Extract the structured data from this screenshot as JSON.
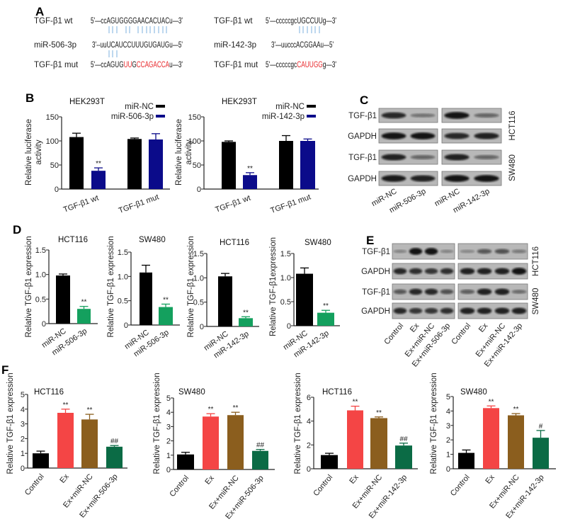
{
  "panels": {
    "A": "A",
    "B": "B",
    "C": "C",
    "D": "D",
    "E": "E",
    "F": "F"
  },
  "panel_a": {
    "left": {
      "labels": [
        "TGF-β1  wt",
        "miR-506-3p",
        "TGF-β1  mut"
      ],
      "wt": "5'—ccAGUGGGGAACACUACu—3'",
      "mir": "3'--uuUCAUCCUUUGUGAUGu—5'",
      "mut": [
        {
          "t": "5'—ccAGUG",
          "red": false
        },
        {
          "t": "UU",
          "red": true
        },
        {
          "t": "G",
          "red": false
        },
        {
          "t": "CCAGACCA",
          "red": true
        },
        {
          "t": "u—3'",
          "red": false
        }
      ]
    },
    "right": {
      "labels": [
        "TGF-β1  wt",
        "miR-142-3p",
        "TGF-β1  mut"
      ],
      "wt": "5'—cccccgcUGCCUUg—3'",
      "mir": "3'—uucccACGGAAu—5'",
      "mut": [
        {
          "t": "5'—cccccgc",
          "red": false
        },
        {
          "t": "CAUUGG",
          "red": true
        },
        {
          "t": "g—3'",
          "red": false
        }
      ]
    },
    "pairing_color": "#6fa8dc"
  },
  "blots_c": {
    "rows": [
      "TGF-β1",
      "GAPDH",
      "TGF-β1",
      "GAPDH"
    ],
    "cell_lines": [
      "HCT116",
      "SW480"
    ],
    "lanes": [
      "miR-NC",
      "miR-506-3p",
      "miR-NC",
      "miR-142-3p"
    ]
  },
  "blots_e": {
    "rows": [
      "TGF-β1",
      "GAPDH",
      "TGF-β1",
      "GAPDH"
    ],
    "cell_lines": [
      "HCT116",
      "SW480"
    ],
    "lanes": [
      "Control",
      "Ex",
      "Ex+miR-NC",
      "Ex+miR-506-3p",
      "Control",
      "Ex",
      "Ex+miR-NC",
      "Ex+miR-142-3p"
    ]
  },
  "chart_data": [
    {
      "id": "B1",
      "type": "bar",
      "title": "HEK293T",
      "ylabel": [
        "Relative luciferase",
        "activity"
      ],
      "ylim": [
        0,
        150
      ],
      "yticks": [
        "0",
        "50",
        "100",
        "150"
      ],
      "ytick_values": [
        0,
        50,
        100,
        150
      ],
      "groups": [
        "TGF-β1  wt",
        "TGF-β1  mut"
      ],
      "legend": [
        {
          "name": "miR-NC",
          "color": "#000000"
        },
        {
          "name": "miR-506-3p",
          "color": "#0b0b8a"
        }
      ],
      "bars": [
        {
          "group": 0,
          "series": 0,
          "value": 108,
          "err": 8,
          "sig": ""
        },
        {
          "group": 0,
          "series": 1,
          "value": 38,
          "err": 6,
          "sig": "**"
        },
        {
          "group": 1,
          "series": 0,
          "value": 104,
          "err": 2,
          "sig": ""
        },
        {
          "group": 1,
          "series": 1,
          "value": 103,
          "err": 12,
          "sig": ""
        }
      ]
    },
    {
      "id": "B2",
      "type": "bar",
      "title": "HEK293T",
      "ylabel": [
        "Relative luciferase",
        "activity"
      ],
      "ylim": [
        0,
        150
      ],
      "yticks": [
        "0",
        "50",
        "100",
        "150"
      ],
      "ytick_values": [
        0,
        50,
        100,
        150
      ],
      "groups": [
        "TGF-β1  wt",
        "TGF-β1  mut"
      ],
      "legend": [
        {
          "name": "miR-NC",
          "color": "#000000"
        },
        {
          "name": "miR-142-3p",
          "color": "#0b0b8a"
        }
      ],
      "bars": [
        {
          "group": 0,
          "series": 0,
          "value": 98,
          "err": 2,
          "sig": ""
        },
        {
          "group": 0,
          "series": 1,
          "value": 29,
          "err": 5,
          "sig": "**"
        },
        {
          "group": 1,
          "series": 0,
          "value": 100,
          "err": 11,
          "sig": ""
        },
        {
          "group": 1,
          "series": 1,
          "value": 100,
          "err": 4,
          "sig": ""
        }
      ]
    },
    {
      "id": "D1",
      "type": "bar",
      "title": "HCT116",
      "ylabel": [
        "Relative TGF-β1 expression"
      ],
      "ylim": [
        0,
        1.5
      ],
      "yticks": [
        "0",
        "0.5",
        "1.0",
        "1.5"
      ],
      "ytick_values": [
        0,
        0.5,
        1.0,
        1.5
      ],
      "categories": [
        "miR-NC",
        "miR-506-3p"
      ],
      "colors": [
        "#000000",
        "#14a05e"
      ],
      "bars": [
        {
          "value": 0.98,
          "err": 0.03,
          "sig": ""
        },
        {
          "value": 0.3,
          "err": 0.05,
          "sig": "**"
        }
      ]
    },
    {
      "id": "D2",
      "type": "bar",
      "title": "SW480",
      "ylabel": [
        "Relative TGF-β1 expression"
      ],
      "ylim": [
        0,
        1.5
      ],
      "yticks": [
        "0",
        "0.5",
        "1.0",
        "1.5"
      ],
      "ytick_values": [
        0,
        0.5,
        1.0,
        1.5
      ],
      "categories": [
        "miR-NC",
        "miR-506-3p"
      ],
      "colors": [
        "#000000",
        "#14a05e"
      ],
      "bars": [
        {
          "value": 1.08,
          "err": 0.15,
          "sig": ""
        },
        {
          "value": 0.37,
          "err": 0.06,
          "sig": "**"
        }
      ]
    },
    {
      "id": "D3",
      "type": "bar",
      "title": "HCT116",
      "ylabel": [
        "Relative TGF-β1 expression"
      ],
      "ylim": [
        0,
        1.5
      ],
      "yticks": [
        "0",
        "0.5",
        "1.0",
        "1.5"
      ],
      "ytick_values": [
        0,
        0.5,
        1.0,
        1.5
      ],
      "categories": [
        "miR-NC",
        "miR-142-3p"
      ],
      "colors": [
        "#000000",
        "#14a05e"
      ],
      "bars": [
        {
          "value": 1.03,
          "err": 0.06,
          "sig": ""
        },
        {
          "value": 0.17,
          "err": 0.03,
          "sig": "**"
        }
      ]
    },
    {
      "id": "D4",
      "type": "bar",
      "title": "SW480",
      "ylabel": [
        "Relative TGF-β1expression"
      ],
      "ylim": [
        0,
        1.5
      ],
      "yticks": [
        "0",
        "0.5",
        "1.0",
        "1.5"
      ],
      "ytick_values": [
        0,
        0.5,
        1.0,
        1.5
      ],
      "categories": [
        "miR-NC",
        "miR-142-3p"
      ],
      "colors": [
        "#000000",
        "#14a05e"
      ],
      "bars": [
        {
          "value": 1.08,
          "err": 0.12,
          "sig": ""
        },
        {
          "value": 0.27,
          "err": 0.05,
          "sig": "**"
        }
      ]
    },
    {
      "id": "F1",
      "type": "bar",
      "title": "HCT116",
      "ylabel": [
        "Relative TGF-β1 expression"
      ],
      "ylim": [
        0,
        5
      ],
      "yticks": [
        "0",
        "1",
        "2",
        "3",
        "4",
        "5"
      ],
      "ytick_values": [
        0,
        1,
        2,
        3,
        4,
        5
      ],
      "categories": [
        "Control",
        "Ex",
        "Ex+miR-NC",
        "Ex+miR-506-3p"
      ],
      "colors": [
        "#000000",
        "#f44545",
        "#8b5e1e",
        "#0b6b45"
      ],
      "bars": [
        {
          "value": 1.0,
          "err": 0.15,
          "sig": ""
        },
        {
          "value": 3.75,
          "err": 0.25,
          "sig": "**"
        },
        {
          "value": 3.3,
          "err": 0.35,
          "sig": "**"
        },
        {
          "value": 1.45,
          "err": 0.08,
          "sig": "##"
        }
      ]
    },
    {
      "id": "F2",
      "type": "bar",
      "title": "SW480",
      "ylabel": [
        "Relative TGF-β1 expression"
      ],
      "ylim": [
        0,
        5
      ],
      "yticks": [
        "0",
        "1",
        "2",
        "3",
        "4",
        "5"
      ],
      "ytick_values": [
        0,
        1,
        2,
        3,
        4,
        5
      ],
      "categories": [
        "Control",
        "Ex",
        "Ex+miR-NC",
        "Ex+miR-506-3p"
      ],
      "colors": [
        "#000000",
        "#f44545",
        "#8b5e1e",
        "#0b6b45"
      ],
      "bars": [
        {
          "value": 1.05,
          "err": 0.15,
          "sig": ""
        },
        {
          "value": 3.7,
          "err": 0.2,
          "sig": "**"
        },
        {
          "value": 3.8,
          "err": 0.2,
          "sig": "**"
        },
        {
          "value": 1.3,
          "err": 0.1,
          "sig": "##"
        }
      ]
    },
    {
      "id": "F3",
      "type": "bar",
      "title": "HCT116",
      "ylabel": [
        "Relative TGF-β1 expression"
      ],
      "ylim": [
        0,
        6
      ],
      "yticks": [
        "0",
        "2",
        "4",
        "6"
      ],
      "ytick_values": [
        0,
        2,
        4,
        6
      ],
      "categories": [
        "Control",
        "Ex",
        "Ex+miR-NC",
        "Ex+miR-142-3p"
      ],
      "colors": [
        "#000000",
        "#f44545",
        "#8b5e1e",
        "#0b6b45"
      ],
      "bars": [
        {
          "value": 1.15,
          "err": 0.15,
          "sig": ""
        },
        {
          "value": 4.9,
          "err": 0.35,
          "sig": "**"
        },
        {
          "value": 4.25,
          "err": 0.1,
          "sig": "**"
        },
        {
          "value": 1.95,
          "err": 0.2,
          "sig": "##"
        }
      ]
    },
    {
      "id": "F4",
      "type": "bar",
      "title": "SW480",
      "ylabel": [
        "Relative TGF-β1 expression"
      ],
      "ylim": [
        0,
        5
      ],
      "yticks": [
        "0",
        "1",
        "2",
        "3",
        "4",
        "5"
      ],
      "ytick_values": [
        0,
        1,
        2,
        3,
        4,
        5
      ],
      "categories": [
        "Control",
        "Ex",
        "Ex+miR-NC",
        "Ex+miR-142-3p"
      ],
      "colors": [
        "#000000",
        "#f44545",
        "#8b5e1e",
        "#0b6b45"
      ],
      "bars": [
        {
          "value": 1.1,
          "err": 0.2,
          "sig": ""
        },
        {
          "value": 4.2,
          "err": 0.15,
          "sig": "**"
        },
        {
          "value": 3.7,
          "err": 0.12,
          "sig": "**"
        },
        {
          "value": 2.15,
          "err": 0.5,
          "sig": "#"
        }
      ]
    }
  ]
}
